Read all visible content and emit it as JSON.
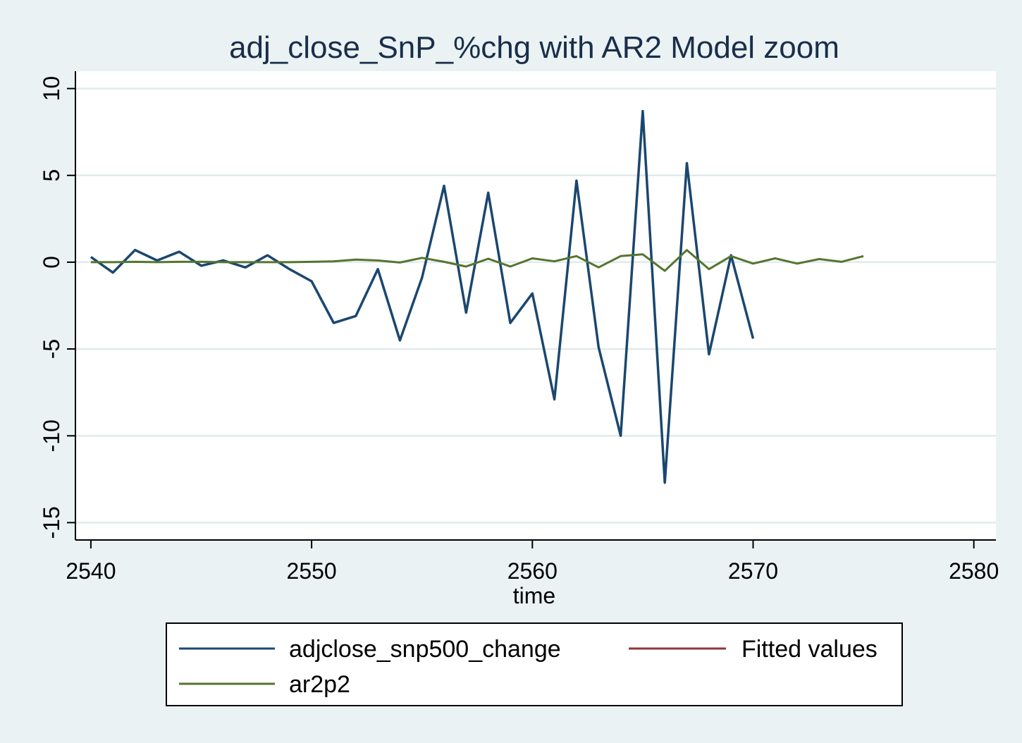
{
  "chart_data": {
    "type": "line",
    "title": "adj_close_SnP_%chg with AR2 Model zoom",
    "xlabel": "time",
    "ylabel": "",
    "xlim": [
      2539.3,
      2581
    ],
    "ylim": [
      -16,
      11
    ],
    "x_ticks": [
      2540,
      2550,
      2560,
      2570,
      2580
    ],
    "y_ticks": [
      -15,
      -10,
      -5,
      0,
      5,
      10
    ],
    "grid": true,
    "legend_position": "bottom",
    "colors": {
      "background": "#eaf2f3",
      "plot_background": "#ffffff",
      "grid": "#e1eaec"
    },
    "series": [
      {
        "name": "adjclose_snp500_change",
        "color": "#1a476f",
        "x": [
          2540,
          2541,
          2542,
          2543,
          2544,
          2545,
          2546,
          2547,
          2548,
          2549,
          2550,
          2551,
          2552,
          2553,
          2554,
          2555,
          2556,
          2557,
          2558,
          2559,
          2560,
          2561,
          2562,
          2563,
          2564,
          2565,
          2566,
          2567,
          2568,
          2569,
          2570
        ],
        "y": [
          0.3,
          -0.6,
          0.7,
          0.1,
          0.6,
          -0.2,
          0.1,
          -0.3,
          0.4,
          -0.4,
          -1.1,
          -3.5,
          -3.1,
          -0.4,
          -4.5,
          -0.9,
          4.4,
          -2.9,
          4.0,
          -3.5,
          -1.8,
          -7.9,
          4.7,
          -4.9,
          -10.0,
          8.7,
          -12.7,
          5.7,
          -5.3,
          0.4,
          -4.4
        ]
      },
      {
        "name": "Fitted values",
        "color": "#90353b",
        "x": [],
        "y": []
      },
      {
        "name": "ar2p2",
        "color": "#55752f",
        "x": [
          2540,
          2541,
          2542,
          2543,
          2544,
          2545,
          2546,
          2547,
          2548,
          2549,
          2550,
          2551,
          2552,
          2553,
          2554,
          2555,
          2556,
          2557,
          2558,
          2559,
          2560,
          2561,
          2562,
          2563,
          2564,
          2565,
          2566,
          2567,
          2568,
          2569,
          2570,
          2571,
          2572,
          2573,
          2574,
          2575
        ],
        "y": [
          0.0,
          0.0,
          0.02,
          0.0,
          0.02,
          0.02,
          0.0,
          0.0,
          0.0,
          0.0,
          0.02,
          0.05,
          0.15,
          0.1,
          -0.02,
          0.25,
          0.02,
          -0.25,
          0.2,
          -0.25,
          0.22,
          0.05,
          0.35,
          -0.3,
          0.35,
          0.45,
          -0.5,
          0.7,
          -0.4,
          0.35,
          -0.08,
          0.22,
          -0.08,
          0.18,
          0.02,
          0.35
        ]
      }
    ]
  }
}
